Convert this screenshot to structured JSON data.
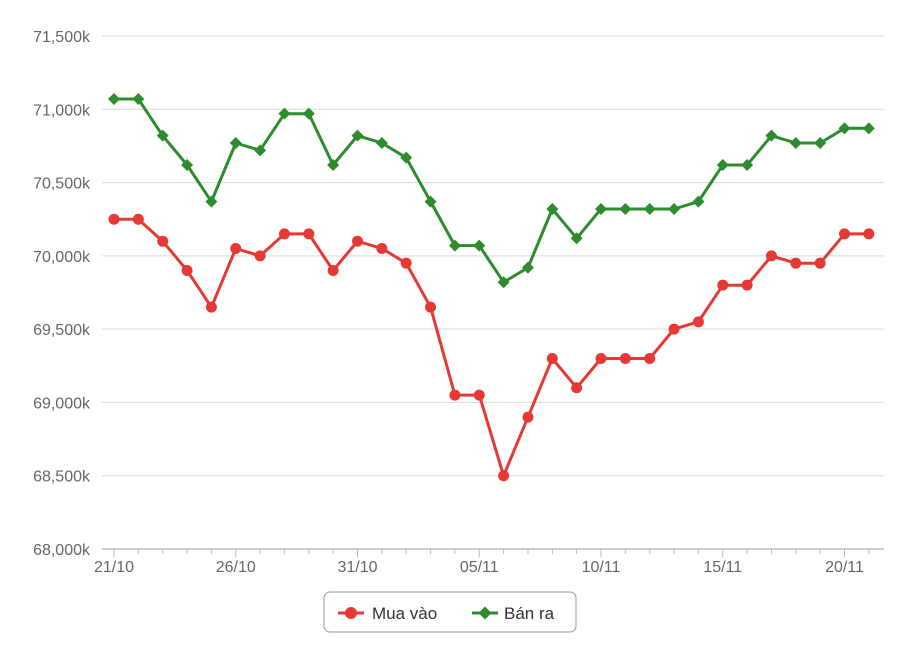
{
  "chart_data": {
    "type": "line",
    "title": "",
    "xlabel": "",
    "ylabel": "",
    "ylim": [
      68000,
      71500
    ],
    "y_ticks": [
      "68,000k",
      "68,500k",
      "69,000k",
      "69,500k",
      "70,000k",
      "70,500k",
      "71,000k",
      "71,500k"
    ],
    "y_tick_values": [
      68000,
      68500,
      69000,
      69500,
      70000,
      70500,
      71000,
      71500
    ],
    "x": [
      "21/10",
      "22/10",
      "23/10",
      "24/10",
      "25/10",
      "26/10",
      "27/10",
      "28/10",
      "29/10",
      "30/10",
      "31/10",
      "01/11",
      "02/11",
      "03/11",
      "04/11",
      "05/11",
      "06/11",
      "07/11",
      "08/11",
      "09/11",
      "10/11",
      "11/11",
      "12/11",
      "13/11",
      "14/11",
      "15/11",
      "16/11",
      "17/11",
      "18/11",
      "19/11",
      "20/11",
      "21/11"
    ],
    "x_tick_labels": [
      "21/10",
      "26/10",
      "31/10",
      "05/11",
      "10/11",
      "15/11",
      "20/11"
    ],
    "x_tick_positions": [
      0,
      5,
      10,
      15,
      20,
      25,
      30
    ],
    "grid": true,
    "legend_position": "bottom",
    "series": [
      {
        "name": "Mua vào",
        "color": "#e53935",
        "marker": "circle",
        "values": [
          70250,
          70250,
          70100,
          69900,
          69650,
          70050,
          70000,
          70150,
          70150,
          69900,
          70100,
          70050,
          69950,
          69650,
          69050,
          69050,
          68500,
          68900,
          69300,
          69100,
          69300,
          69300,
          69300,
          69500,
          69550,
          69800,
          69800,
          70000,
          69950,
          69950,
          70150,
          70150
        ]
      },
      {
        "name": "Bán ra",
        "color": "#2e8b2e",
        "marker": "diamond",
        "values": [
          71070,
          71070,
          70820,
          70620,
          70370,
          70770,
          70720,
          70970,
          70970,
          70620,
          70820,
          70770,
          70670,
          70370,
          70070,
          70070,
          69820,
          69920,
          70320,
          70120,
          70320,
          70320,
          70320,
          70320,
          70370,
          70620,
          70620,
          70820,
          70770,
          70770,
          70870,
          70870
        ]
      }
    ]
  }
}
